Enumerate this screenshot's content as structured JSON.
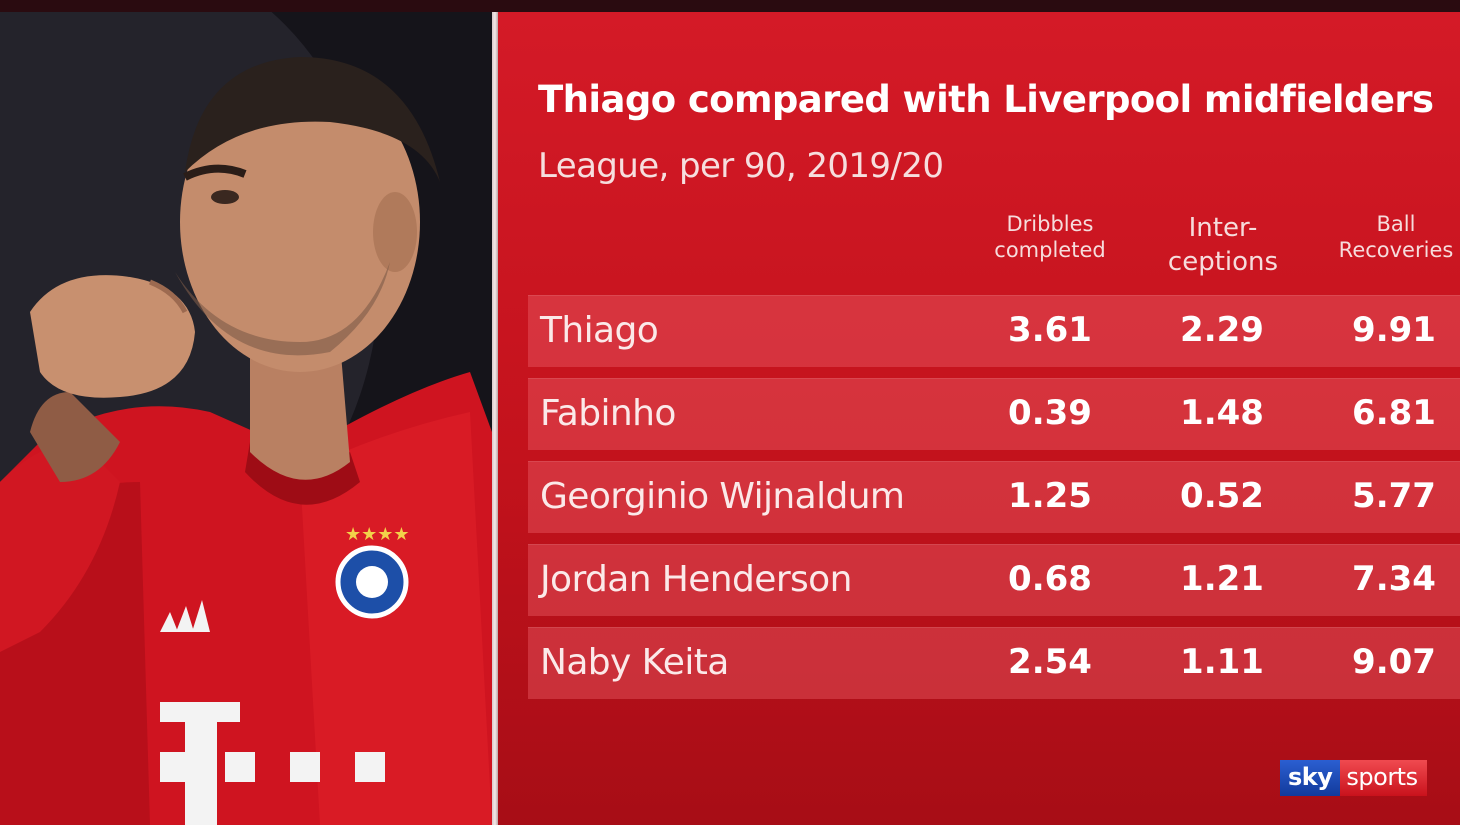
{
  "title": "Thiago compared with Liverpool midfielders",
  "subtitle": "League, per 90, 2019/20",
  "columns": {
    "dribbles_line1": "Dribbles",
    "dribbles_line2": "completed",
    "interceptions_line1": "Inter-",
    "interceptions_line2": "ceptions",
    "recoveries_line1": "Ball",
    "recoveries_line2": "Recoveries"
  },
  "rows": [
    {
      "name": "Thiago",
      "dribbles": "3.61",
      "interceptions": "2.29",
      "recoveries": "9.91"
    },
    {
      "name": "Fabinho",
      "dribbles": "0.39",
      "interceptions": "1.48",
      "recoveries": "6.81"
    },
    {
      "name": "Georginio Wijnaldum",
      "dribbles": "1.25",
      "interceptions": "0.52",
      "recoveries": "5.77"
    },
    {
      "name": "Jordan Henderson",
      "dribbles": "0.68",
      "interceptions": "1.21",
      "recoveries": "7.34"
    },
    {
      "name": "Naby Keita",
      "dribbles": "2.54",
      "interceptions": "1.11",
      "recoveries": "9.07"
    }
  ],
  "logo": {
    "sky": "sky",
    "sports": "sports"
  },
  "colors": {
    "panel": "#c3121c",
    "row": "#e0545c",
    "jersey": "#d8141f",
    "text": "#ffffff"
  }
}
